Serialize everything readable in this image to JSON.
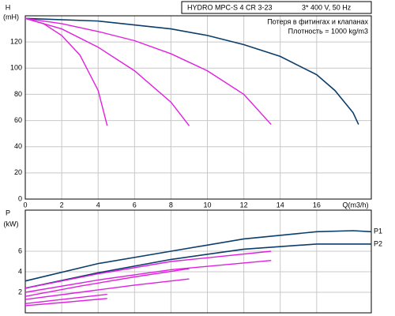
{
  "chart_data": [
    {
      "type": "line",
      "title": "HYDRO MPC-S 4 CR 3-23",
      "subtitle": "3* 400 V, 50 Hz",
      "annotations": [
        "Потеря в фитингах и клапанах",
        "Плотность = 1000 kg/m3"
      ],
      "y_label": "H",
      "y_unit": "(mH)",
      "x_label": "Q(m3/h)",
      "xlim": [
        0,
        19
      ],
      "xticks": [
        0,
        2,
        4,
        6,
        8,
        10,
        12,
        14,
        16
      ],
      "ylim": [
        0,
        140
      ],
      "yticks": [
        0,
        20,
        40,
        60,
        80,
        100,
        120
      ],
      "grid": true,
      "series": [
        {
          "color": "#0b3d6b",
          "x": [
            0,
            4,
            8,
            10,
            12,
            14,
            16,
            17,
            18,
            18.3
          ],
          "values": [
            138,
            136,
            130,
            125,
            118,
            109,
            95,
            83,
            66,
            57
          ]
        },
        {
          "color": "#e020e0",
          "x": [
            0,
            2,
            4,
            6,
            8,
            10,
            12,
            13.5
          ],
          "values": [
            138,
            134,
            128,
            121,
            111,
            98,
            80,
            57
          ]
        },
        {
          "color": "#e020e0",
          "x": [
            0,
            2,
            4,
            6,
            8,
            9
          ],
          "values": [
            138,
            130,
            116,
            98,
            74,
            56
          ]
        },
        {
          "color": "#e020e0",
          "x": [
            0,
            1,
            2,
            3,
            4,
            4.5
          ],
          "values": [
            138,
            134,
            125,
            110,
            83,
            56
          ]
        }
      ]
    },
    {
      "type": "line",
      "y_label": "P",
      "y_unit": "(kW)",
      "xlim": [
        0,
        19
      ],
      "xticks": [
        0,
        2,
        4,
        6,
        8,
        10,
        12,
        14,
        16
      ],
      "ylim": [
        0,
        10
      ],
      "yticks": [
        2,
        4,
        6
      ],
      "grid": true,
      "series": [
        {
          "name": "P1",
          "color": "#0b3d6b",
          "x": [
            0,
            4,
            8,
            12,
            16,
            18,
            19
          ],
          "values": [
            3.1,
            4.8,
            6.0,
            7.2,
            7.9,
            8.0,
            7.9
          ]
        },
        {
          "name": "P2",
          "color": "#0b3d6b",
          "x": [
            0,
            4,
            8,
            12,
            16,
            19
          ],
          "values": [
            2.4,
            3.9,
            5.2,
            6.2,
            6.7,
            6.7
          ]
        },
        {
          "color": "#e020e0",
          "x": [
            0,
            4,
            8,
            13.5
          ],
          "values": [
            2.4,
            3.8,
            5.0,
            6.0
          ]
        },
        {
          "color": "#e020e0",
          "x": [
            0,
            4,
            8,
            13.5
          ],
          "values": [
            2.0,
            3.2,
            4.2,
            5.1
          ]
        },
        {
          "color": "#e020e0",
          "x": [
            0,
            3,
            6,
            9
          ],
          "values": [
            1.6,
            2.6,
            3.5,
            4.3
          ]
        },
        {
          "color": "#e020e0",
          "x": [
            0,
            3,
            6,
            9
          ],
          "values": [
            1.3,
            2.0,
            2.7,
            3.3
          ]
        },
        {
          "color": "#e020e0",
          "x": [
            0,
            2,
            4.5
          ],
          "values": [
            0.9,
            1.3,
            1.8
          ]
        },
        {
          "color": "#e020e0",
          "x": [
            0,
            2,
            4.5
          ],
          "values": [
            0.7,
            1.0,
            1.4
          ]
        }
      ]
    }
  ]
}
